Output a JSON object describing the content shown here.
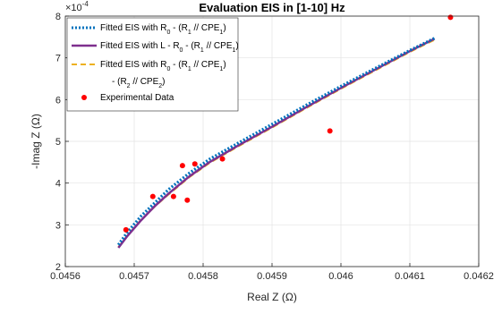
{
  "chart_data": {
    "type": "line",
    "title": "Evaluation EIS in [1-10] Hz",
    "xlabel": "Real Z (Ω)",
    "ylabel": "-Imag Z (Ω)",
    "y_exponent_label": "×10",
    "y_exponent": "-4",
    "xlim": [
      0.0456,
      0.0462
    ],
    "ylim": [
      0.0002,
      0.0008
    ],
    "x_ticks": [
      0.0456,
      0.0457,
      0.0458,
      0.0459,
      0.046,
      0.0461,
      0.0462
    ],
    "x_tick_labels": [
      "0.0456",
      "0.0457",
      "0.0458",
      "0.0459",
      "0.046",
      "0.0461",
      "0.0462"
    ],
    "y_ticks": [
      0.0002,
      0.0003,
      0.0004,
      0.0005,
      0.0006,
      0.0007,
      0.0008
    ],
    "y_tick_labels": [
      "2",
      "3",
      "4",
      "5",
      "6",
      "7",
      "8"
    ],
    "grid": true,
    "legend_position": "top-left",
    "legend": [
      {
        "parts": [
          [
            "Fitted EIS with R",
            ""
          ],
          [
            "0",
            "sub"
          ],
          [
            " - (R",
            ""
          ],
          [
            "1",
            "sub"
          ],
          [
            " // CPE",
            ""
          ],
          [
            "1",
            "sub"
          ],
          [
            ")",
            ""
          ]
        ]
      },
      {
        "parts": [
          [
            "Fitted EIS with L - R",
            ""
          ],
          [
            "0",
            "sub"
          ],
          [
            " - (R",
            ""
          ],
          [
            "1",
            "sub"
          ],
          [
            " // CPE",
            ""
          ],
          [
            "1",
            "sub"
          ],
          [
            ")",
            ""
          ]
        ]
      },
      {
        "parts": [
          [
            "Fitted EIS with R",
            ""
          ],
          [
            "0",
            "sub"
          ],
          [
            " - (R",
            ""
          ],
          [
            "1",
            "sub"
          ],
          [
            " // CPE",
            ""
          ],
          [
            "1",
            "sub"
          ],
          [
            ")",
            ""
          ]
        ],
        "parts2": [
          [
            "- (R",
            ""
          ],
          [
            "2",
            "sub"
          ],
          [
            " // CPE",
            ""
          ],
          [
            "2",
            "sub"
          ],
          [
            ")",
            ""
          ]
        ]
      },
      {
        "parts": [
          [
            "Experimental Data",
            ""
          ]
        ]
      }
    ],
    "series": [
      {
        "name": "Fitted EIS with R0 - (R1 // CPE1)",
        "color": "#0072BD",
        "style": "dotted",
        "x": [
          0.045677,
          0.04569,
          0.04571,
          0.04573,
          0.04575,
          0.04578,
          0.04581,
          0.04585,
          0.0459,
          0.04595,
          0.046,
          0.04605,
          0.0461,
          0.046137
        ],
        "y": [
          0.000252,
          0.000282,
          0.000321,
          0.000353,
          0.000385,
          0.000424,
          0.000458,
          0.000495,
          0.000541,
          0.000587,
          0.000632,
          0.000675,
          0.000718,
          0.000748
        ]
      },
      {
        "name": "Fitted EIS with L - R0 - (R1 // CPE1)",
        "color": "#7E2F8E",
        "style": "solid",
        "x": [
          0.045677,
          0.04569,
          0.04571,
          0.04573,
          0.04575,
          0.04578,
          0.04581,
          0.04585,
          0.0459,
          0.04595,
          0.046,
          0.04605,
          0.0461,
          0.046136
        ],
        "y": [
          0.000245,
          0.000273,
          0.000311,
          0.000345,
          0.000375,
          0.000416,
          0.000451,
          0.000489,
          0.000535,
          0.000582,
          0.000628,
          0.000672,
          0.000716,
          0.000746
        ]
      },
      {
        "name": "Fitted EIS with R0 - (R1 // CPE1) - (R2 // CPE2)",
        "color": "#EDB120",
        "style": "dashed",
        "x": [
          0.045677,
          0.04569,
          0.04571,
          0.04573,
          0.04575,
          0.04578,
          0.04581,
          0.04585,
          0.0459,
          0.04595,
          0.046,
          0.04605,
          0.0461,
          0.046137
        ],
        "y": [
          0.000247,
          0.000274,
          0.000312,
          0.000344,
          0.000373,
          0.000414,
          0.000449,
          0.000487,
          0.000533,
          0.00058,
          0.000626,
          0.00067,
          0.000714,
          0.000744
        ]
      },
      {
        "name": "Experimental Data",
        "color": "#FF0000",
        "style": "markers",
        "x": [
          0.045688,
          0.045727,
          0.045757,
          0.04577,
          0.045777,
          0.045788,
          0.045828,
          0.045984,
          0.046159
        ],
        "y": [
          0.000288,
          0.000368,
          0.000368,
          0.000442,
          0.000359,
          0.000446,
          0.000458,
          0.000525,
          0.000797
        ]
      }
    ]
  }
}
